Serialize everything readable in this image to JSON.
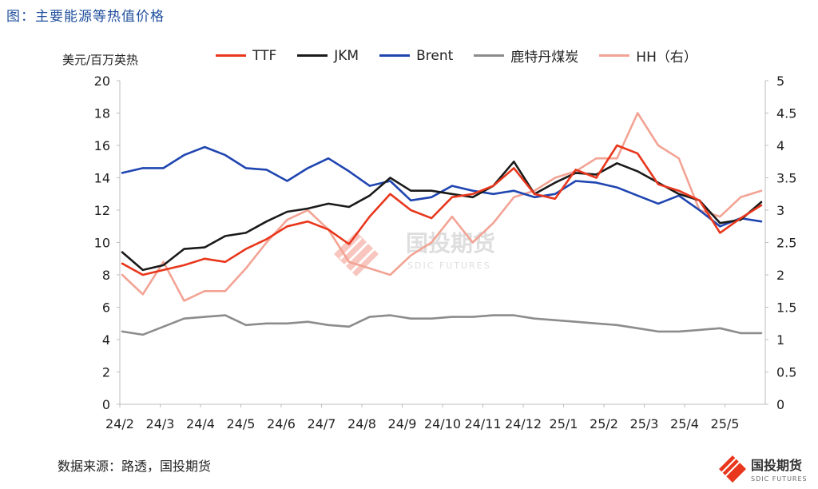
{
  "figure_title": "图：主要能源等热值价格",
  "source_note": "数据来源：路透，国投期货",
  "watermark": {
    "cn": "国投期货",
    "en": "SDIC FUTURES"
  },
  "logo": {
    "cn": "国投期货",
    "en": "SDIC FUTURES"
  },
  "colors": {
    "TTF": "#e8371c",
    "JKM": "#1a1a1a",
    "Brent": "#1f45b0",
    "coal": "#8c8c8c",
    "HH": "#f2a394"
  },
  "chart_data": {
    "type": "line",
    "ylabel_left": "美元/百万英热",
    "ylim_left": [
      0,
      20
    ],
    "yticks_left": [
      "0",
      "2",
      "4",
      "6",
      "8",
      "10",
      "12",
      "14",
      "16",
      "18",
      "20"
    ],
    "ylim_right": [
      0,
      5
    ],
    "yticks_right": [
      "0",
      "0.5",
      "1",
      "1.5",
      "2",
      "2.5",
      "3",
      "3.5",
      "4",
      "4.5",
      "5"
    ],
    "xticks": [
      "24/2",
      "24/3",
      "24/4",
      "24/5",
      "24/6",
      "24/7",
      "24/8",
      "24/9",
      "24/10",
      "24/11",
      "24/12",
      "25/1",
      "25/2",
      "25/3",
      "25/4",
      "25/5"
    ],
    "x": [
      "24/2",
      "24/2.5",
      "24/3",
      "24/3.5",
      "24/4",
      "24/4.5",
      "24/5",
      "24/5.5",
      "24/6",
      "24/6.5",
      "24/7",
      "24/7.5",
      "24/8",
      "24/8.5",
      "24/9",
      "24/9.5",
      "24/10",
      "24/10.5",
      "24/11",
      "24/11.5",
      "24/12",
      "24/12.5",
      "25/1",
      "25/1.5",
      "25/2",
      "25/2.5",
      "25/3",
      "25/3.5",
      "25/4",
      "25/4.5",
      "25/5",
      "25/5.5"
    ],
    "series": [
      {
        "name": "TTF",
        "axis": "left",
        "values": [
          8.7,
          8.0,
          8.3,
          8.6,
          9.0,
          8.8,
          9.6,
          10.2,
          11.0,
          11.3,
          10.8,
          9.9,
          11.6,
          13.0,
          12.0,
          11.5,
          12.8,
          13.0,
          13.5,
          14.6,
          13.0,
          12.7,
          14.5,
          14.0,
          16.0,
          15.5,
          13.6,
          13.2,
          12.6,
          10.6,
          11.5,
          12.3
        ]
      },
      {
        "name": "JKM",
        "axis": "left",
        "values": [
          9.4,
          8.3,
          8.6,
          9.6,
          9.7,
          10.4,
          10.6,
          11.3,
          11.9,
          12.1,
          12.4,
          12.2,
          12.9,
          14.0,
          13.2,
          13.2,
          13.0,
          12.8,
          13.5,
          15.0,
          13.0,
          13.7,
          14.3,
          14.2,
          14.9,
          14.4,
          13.7,
          13.0,
          12.6,
          11.2,
          11.4,
          12.5
        ]
      },
      {
        "name": "Brent",
        "axis": "left",
        "values": [
          14.3,
          14.6,
          14.6,
          15.4,
          15.9,
          15.4,
          14.6,
          14.5,
          13.8,
          14.6,
          15.2,
          14.4,
          13.5,
          13.8,
          12.6,
          12.8,
          13.5,
          13.2,
          13.0,
          13.2,
          12.8,
          13.0,
          13.8,
          13.7,
          13.4,
          12.9,
          12.4,
          12.9,
          12.0,
          11.0,
          11.5,
          11.3
        ]
      },
      {
        "name": "鹿特丹煤炭",
        "axis": "left",
        "values": [
          4.5,
          4.3,
          4.8,
          5.3,
          5.4,
          5.5,
          4.9,
          5.0,
          5.0,
          5.1,
          4.9,
          4.8,
          5.4,
          5.5,
          5.3,
          5.3,
          5.4,
          5.4,
          5.5,
          5.5,
          5.3,
          5.2,
          5.1,
          5.0,
          4.9,
          4.7,
          4.5,
          4.5,
          4.6,
          4.7,
          4.4,
          4.4
        ]
      },
      {
        "name": "HH（右）",
        "axis": "right",
        "values": [
          2.0,
          1.7,
          2.2,
          1.6,
          1.75,
          1.75,
          2.1,
          2.5,
          2.85,
          3.0,
          2.7,
          2.2,
          2.1,
          2.0,
          2.3,
          2.5,
          2.9,
          2.5,
          2.8,
          3.2,
          3.3,
          3.5,
          3.6,
          3.8,
          3.8,
          4.5,
          4.0,
          3.8,
          3.0,
          2.9,
          3.2,
          3.3
        ]
      }
    ],
    "grid": false,
    "legend": "top"
  }
}
